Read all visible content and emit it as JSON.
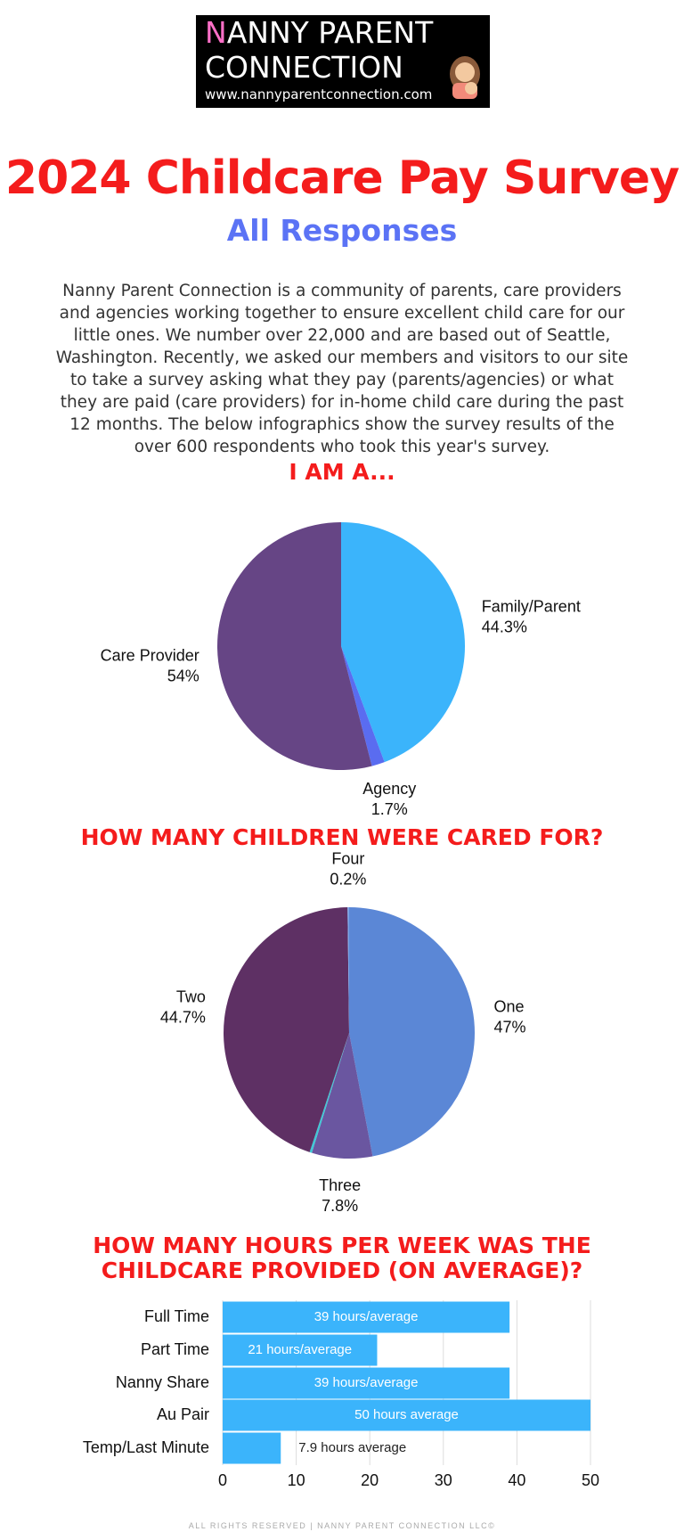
{
  "header": {
    "logo_line1": "NANNY PARENT",
    "logo_line2": "CONNECTION",
    "logo_url": "www.nannyparentconnection.com",
    "title": "2024 Childcare Pay Survey",
    "subtitle": "All Responses",
    "intro": "Nanny Parent Connection is a community of parents, care providers and agencies working together to ensure excellent child care for our little ones. We number over 22,000 and are based out of Seattle, Washington. Recently, we asked our members and visitors to our site to take a survey asking what they pay (parents/agencies) or what they are paid (care providers) for in-home child care during the past 12 months. The below infographics show the survey results of the over 600 respondents who took this year's survey."
  },
  "footer": "ALL RIGHTS RESERVED | NANNY PARENT CONNECTION LLC©",
  "chart_data": [
    {
      "type": "pie",
      "title": "I AM A...",
      "categories": [
        "Family/Parent",
        "Agency",
        "Care Provider"
      ],
      "values": [
        44.3,
        1.7,
        54
      ],
      "value_labels": [
        "44.3%",
        "1.7%",
        "54%"
      ],
      "colors": [
        "#3bb4fb",
        "#5a6cf0",
        "#664585"
      ]
    },
    {
      "type": "pie",
      "title": "HOW MANY CHILDREN WERE CARED FOR?",
      "categories": [
        "One",
        "Three",
        null,
        "Two",
        "Four"
      ],
      "values": [
        47,
        7.8,
        0.3,
        44.7,
        0.2
      ],
      "value_labels": [
        "47%",
        "7.8%",
        null,
        "44.7%",
        "0.2%"
      ],
      "colors": [
        "#5b87d6",
        "#6a56a0",
        "#3fc8d6",
        "#5e3064",
        "#7aa5e6"
      ]
    },
    {
      "type": "hbar",
      "title": [
        "HOW MANY HOURS PER WEEK WAS THE",
        "CHILDCARE PROVIDED (ON AVERAGE)?"
      ],
      "categories": [
        "Full Time",
        "Part Time",
        "Nanny Share",
        "Au Pair",
        "Temp/Last Minute"
      ],
      "values": [
        39,
        21,
        39,
        50,
        7.9
      ],
      "value_labels": [
        "39 hours/average",
        "21 hours/average",
        "39 hours/average",
        "50 hours average",
        "7.9 hours average"
      ],
      "color": "#3bb4fb",
      "xlim": [
        0,
        50
      ],
      "xticks": [
        0,
        10,
        20,
        30,
        40,
        50
      ],
      "grid": true
    }
  ]
}
